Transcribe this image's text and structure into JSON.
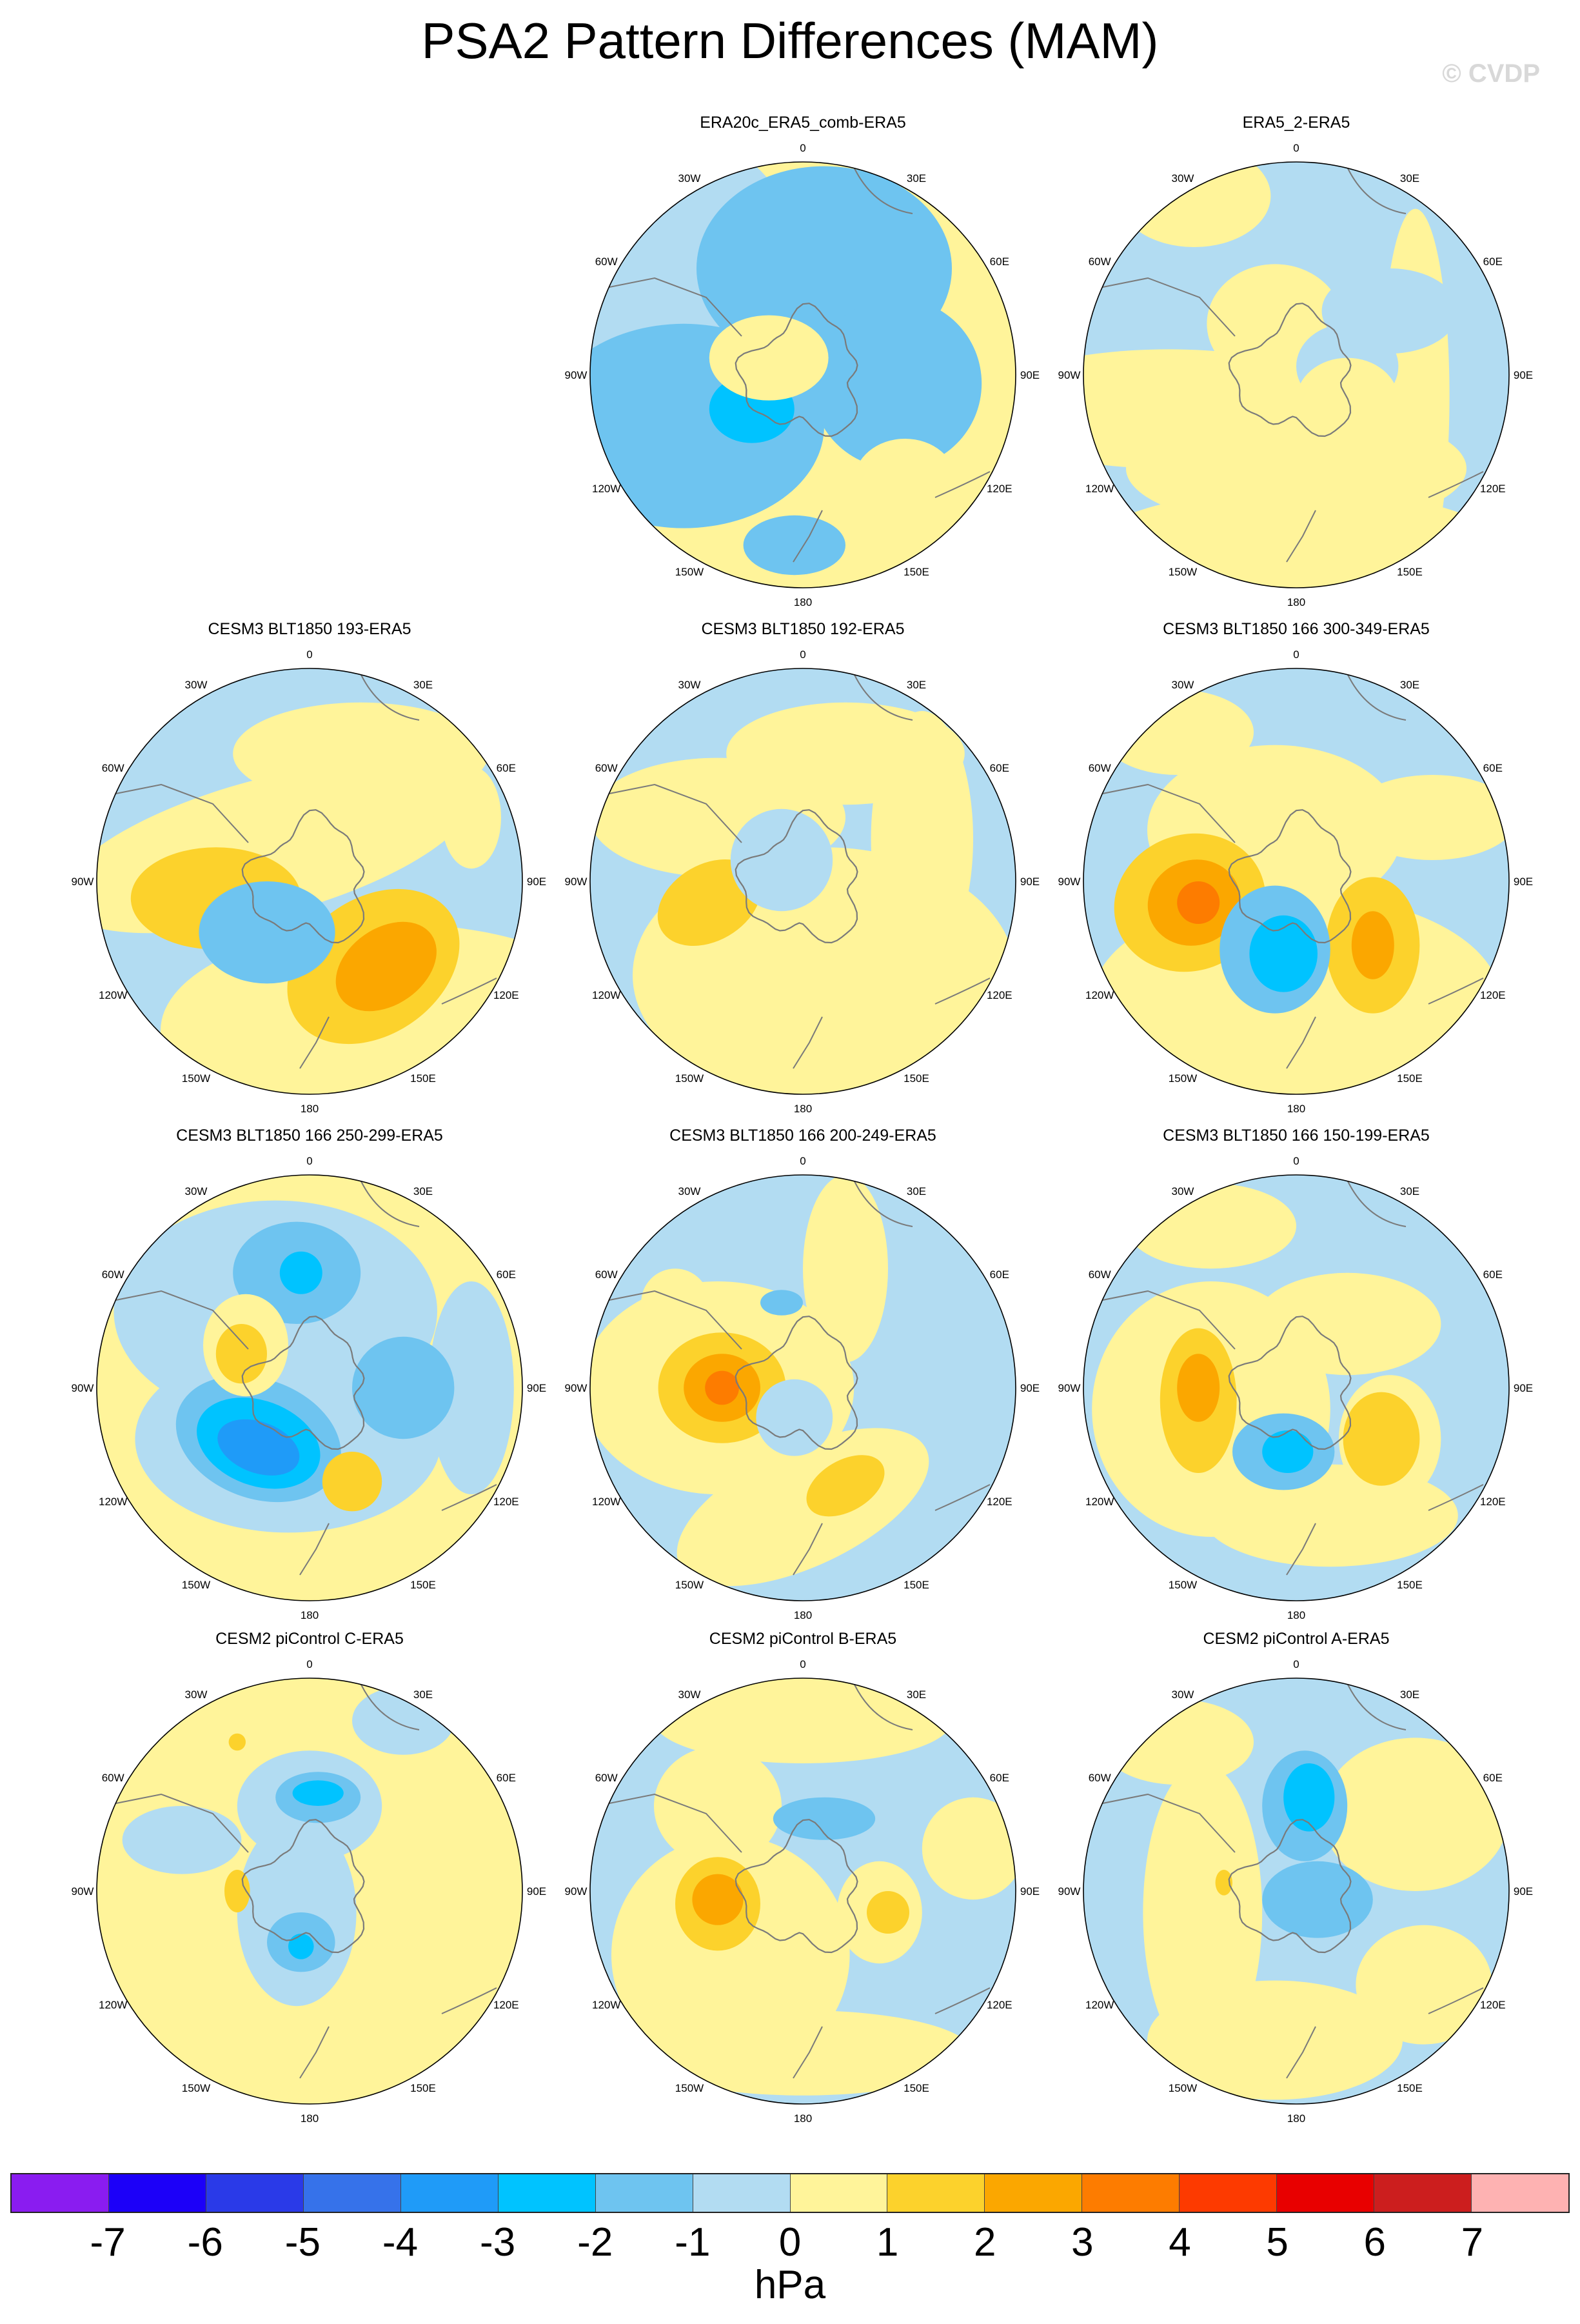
{
  "figure": {
    "title": "PSA2 Pattern Differences (MAM)",
    "watermark": "© CVDP"
  },
  "longitude_labels": {
    "lon_0": "0",
    "lon_30e": "30E",
    "lon_60e": "60E",
    "lon_90e": "90E",
    "lon_120e": "120E",
    "lon_150e": "150E",
    "lon_180": "180",
    "lon_150w": "150W",
    "lon_120w": "120W",
    "lon_90w": "90W",
    "lon_60w": "60W",
    "lon_30w": "30W"
  },
  "colors": {
    "land_outline": "#7a7a7a",
    "colorbar": [
      "#8a1cf0",
      "#1c00f8",
      "#2a3ae8",
      "#3672ea",
      "#1f9bf8",
      "#00c3ff",
      "#6ec4f0",
      "#b2dcf2",
      "#fff49a",
      "#fcd22c",
      "#fba700",
      "#fd7c00",
      "#fd3a00",
      "#e80000",
      "#cc1e1e",
      "#feb2b2"
    ]
  },
  "panels": [
    {
      "title": "ERA20c_ERA5_comb-ERA5",
      "base": "pos",
      "blobs": [
        [
          "neg1",
          0.08,
          0.2,
          0.6,
          0.4,
          0.3,
          0
        ],
        [
          "neg2",
          0.55,
          0.25,
          0.48,
          0.3,
          0.24,
          0
        ],
        [
          "neg2",
          0.22,
          0.62,
          0.6,
          0.33,
          0.24,
          0
        ],
        [
          "neg2",
          0.72,
          0.52,
          0.4,
          0.2,
          0.2,
          0
        ],
        [
          "neg3",
          0.38,
          0.58,
          0.6,
          0.1,
          0.08,
          0
        ],
        [
          "pos1",
          0.42,
          0.46,
          0.32,
          0.14,
          0.1,
          0
        ],
        [
          "pos1",
          0.74,
          0.75,
          0.4,
          0.12,
          0.1,
          0
        ],
        [
          "neg2",
          0.48,
          0.9,
          0.6,
          0.12,
          0.07,
          0
        ]
      ]
    },
    {
      "title": "ERA5_2-ERA5",
      "base": "neg",
      "blobs": [
        [
          "pos1",
          0.26,
          0.08,
          0.12,
          0.18,
          0.12,
          0
        ],
        [
          "pos1",
          0.5,
          0.72,
          0.7,
          0.4,
          0.14,
          0
        ],
        [
          "pos1",
          0.78,
          0.55,
          0.7,
          0.08,
          0.44,
          0
        ],
        [
          "pos1",
          0.2,
          0.58,
          0.4,
          0.45,
          0.14,
          0
        ],
        [
          "pos1",
          0.5,
          0.92,
          0.68,
          0.5,
          0.15,
          0
        ],
        [
          "pos1",
          0.45,
          0.38,
          0.25,
          0.16,
          0.14,
          0
        ],
        [
          "neg1",
          0.72,
          0.35,
          0.7,
          0.16,
          0.1,
          0
        ],
        [
          "neg1",
          0.62,
          0.48,
          0.7,
          0.12,
          0.1,
          0
        ],
        [
          "pos1",
          0.62,
          0.56,
          0.32,
          0.12,
          0.1,
          0
        ]
      ]
    },
    {
      "title": "CESM3 BLT1850 193-ERA5",
      "base": "neg",
      "blobs": [
        [
          "pos1",
          0.7,
          0.85,
          0.4,
          0.55,
          0.25,
          0
        ],
        [
          "pos1",
          0.4,
          0.42,
          0.3,
          0.5,
          0.16,
          -15
        ],
        [
          "pos1",
          0.62,
          0.2,
          0.55,
          0.3,
          0.12,
          0
        ],
        [
          "pos2",
          0.28,
          0.54,
          0.35,
          0.2,
          0.12,
          0
        ],
        [
          "pos2",
          0.65,
          0.7,
          0.63,
          0.22,
          0.16,
          -35
        ],
        [
          "pos3",
          0.68,
          0.7,
          0.67,
          0.13,
          0.09,
          -35
        ],
        [
          "neg2",
          0.4,
          0.62,
          0.6,
          0.16,
          0.12,
          0
        ],
        [
          "pos1",
          0.88,
          0.35,
          0.25,
          0.07,
          0.12,
          0
        ],
        [
          "pos1",
          0.7,
          0.38,
          0.2,
          0.1,
          0.08,
          0
        ]
      ]
    },
    {
      "title": "CESM3 BLT1850 192-ERA5",
      "base": "neg",
      "blobs": [
        [
          "pos1",
          0.55,
          0.72,
          0.6,
          0.45,
          0.3,
          0
        ],
        [
          "pos1",
          0.3,
          0.35,
          0.5,
          0.3,
          0.14,
          0
        ],
        [
          "pos1",
          0.78,
          0.4,
          0.5,
          0.12,
          0.3,
          0
        ],
        [
          "pos1",
          0.6,
          0.2,
          0.35,
          0.28,
          0.12,
          0
        ],
        [
          "pos2",
          0.28,
          0.55,
          0.35,
          0.13,
          0.09,
          -30
        ],
        [
          "neg1",
          0.45,
          0.45,
          0.25,
          0.12,
          0.12,
          0
        ],
        [
          "pos1",
          0.88,
          0.75,
          0.38,
          0.1,
          0.14,
          0
        ]
      ]
    },
    {
      "title": "CESM3 BLT1850 166 300-349-ERA5",
      "base": "neg",
      "blobs": [
        [
          "pos1",
          0.5,
          0.78,
          0.62,
          0.48,
          0.25,
          0
        ],
        [
          "pos1",
          0.45,
          0.38,
          0.34,
          0.3,
          0.2,
          0
        ],
        [
          "pos1",
          0.82,
          0.35,
          0.22,
          0.2,
          0.1,
          0
        ],
        [
          "pos1",
          0.22,
          0.15,
          0.16,
          0.18,
          0.1,
          0
        ],
        [
          "pos2",
          0.25,
          0.55,
          0.4,
          0.18,
          0.16,
          -20
        ],
        [
          "pos3",
          0.26,
          0.55,
          0.45,
          0.11,
          0.1,
          -20
        ],
        [
          "pos4",
          0.27,
          0.55,
          0.5,
          0.05,
          0.05,
          0
        ],
        [
          "pos2",
          0.68,
          0.65,
          0.55,
          0.11,
          0.16,
          0
        ],
        [
          "pos3",
          0.68,
          0.65,
          0.6,
          0.05,
          0.08,
          0
        ],
        [
          "neg2",
          0.45,
          0.66,
          0.6,
          0.13,
          0.15,
          0
        ],
        [
          "neg3",
          0.47,
          0.67,
          0.63,
          0.08,
          0.09,
          0
        ]
      ]
    },
    {
      "title": "CESM3 BLT1850 166 250-299-ERA5",
      "base": "pos",
      "blobs": [
        [
          "neg1",
          0.42,
          0.32,
          0.55,
          0.38,
          0.26,
          0
        ],
        [
          "neg1",
          0.45,
          0.62,
          0.6,
          0.36,
          0.22,
          0
        ],
        [
          "neg1",
          0.88,
          0.5,
          0.35,
          0.1,
          0.25,
          0
        ],
        [
          "neg2",
          0.47,
          0.23,
          0.6,
          0.15,
          0.12,
          0
        ],
        [
          "neg3",
          0.48,
          0.23,
          0.65,
          0.05,
          0.05,
          0
        ],
        [
          "neg2",
          0.72,
          0.5,
          0.6,
          0.12,
          0.12,
          0
        ],
        [
          "neg2",
          0.38,
          0.62,
          0.6,
          0.2,
          0.14,
          20
        ],
        [
          "neg3",
          0.38,
          0.63,
          0.62,
          0.15,
          0.1,
          20
        ],
        [
          "neg4",
          0.38,
          0.64,
          0.66,
          0.1,
          0.06,
          20
        ],
        [
          "pos1",
          0.35,
          0.4,
          0.45,
          0.1,
          0.12,
          0
        ],
        [
          "pos2",
          0.34,
          0.42,
          0.48,
          0.06,
          0.07,
          0
        ],
        [
          "pos2",
          0.6,
          0.72,
          0.5,
          0.07,
          0.07,
          0
        ]
      ]
    },
    {
      "title": "CESM3 BLT1850 166 200-249-ERA5",
      "base": "neg",
      "blobs": [
        [
          "pos1",
          0.3,
          0.5,
          0.38,
          0.32,
          0.25,
          0
        ],
        [
          "pos1",
          0.6,
          0.22,
          0.4,
          0.1,
          0.22,
          0
        ],
        [
          "pos1",
          0.5,
          0.78,
          0.55,
          0.32,
          0.14,
          -25
        ],
        [
          "pos1",
          0.2,
          0.3,
          0.3,
          0.08,
          0.08,
          0
        ],
        [
          "pos2",
          0.31,
          0.5,
          0.45,
          0.15,
          0.13,
          0
        ],
        [
          "pos3",
          0.31,
          0.5,
          0.5,
          0.09,
          0.08,
          0
        ],
        [
          "pos4",
          0.31,
          0.5,
          0.55,
          0.04,
          0.04,
          0
        ],
        [
          "pos2",
          0.6,
          0.73,
          0.5,
          0.1,
          0.06,
          -30
        ],
        [
          "neg1",
          0.48,
          0.57,
          0.25,
          0.09,
          0.09,
          0
        ],
        [
          "neg2",
          0.45,
          0.3,
          0.28,
          0.05,
          0.03,
          0
        ]
      ]
    },
    {
      "title": "CESM3 BLT1850 166 150-199-ERA5",
      "base": "neg",
      "blobs": [
        [
          "pos1",
          0.3,
          0.55,
          0.48,
          0.28,
          0.3,
          0
        ],
        [
          "pos1",
          0.58,
          0.8,
          0.55,
          0.3,
          0.12,
          0
        ],
        [
          "pos1",
          0.62,
          0.35,
          0.28,
          0.22,
          0.12,
          0
        ],
        [
          "pos1",
          0.3,
          0.12,
          0.2,
          0.2,
          0.1,
          0
        ],
        [
          "pos1",
          0.72,
          0.62,
          0.55,
          0.12,
          0.15,
          0
        ],
        [
          "pos2",
          0.27,
          0.53,
          0.45,
          0.09,
          0.17,
          0
        ],
        [
          "pos3",
          0.27,
          0.5,
          0.5,
          0.05,
          0.08,
          0
        ],
        [
          "pos2",
          0.7,
          0.62,
          0.55,
          0.09,
          0.11,
          0
        ],
        [
          "neg2",
          0.47,
          0.65,
          0.6,
          0.12,
          0.09,
          0
        ],
        [
          "neg3",
          0.48,
          0.65,
          0.62,
          0.06,
          0.05,
          0
        ]
      ]
    },
    {
      "title": "CESM2 piControl C-ERA5",
      "base": "pos",
      "blobs": [
        [
          "neg1",
          0.5,
          0.3,
          0.6,
          0.17,
          0.13,
          0
        ],
        [
          "neg1",
          0.47,
          0.55,
          0.6,
          0.14,
          0.22,
          0
        ],
        [
          "neg1",
          0.2,
          0.38,
          0.45,
          0.14,
          0.08,
          0
        ],
        [
          "neg1",
          0.72,
          0.1,
          0.45,
          0.12,
          0.08,
          0
        ],
        [
          "neg2",
          0.52,
          0.28,
          0.6,
          0.1,
          0.06,
          0
        ],
        [
          "neg3",
          0.52,
          0.27,
          0.65,
          0.06,
          0.03,
          0
        ],
        [
          "neg2",
          0.48,
          0.62,
          0.6,
          0.08,
          0.07,
          0
        ],
        [
          "neg3",
          0.48,
          0.63,
          0.65,
          0.03,
          0.03,
          0
        ],
        [
          "pos2",
          0.33,
          0.5,
          0.55,
          0.03,
          0.05,
          0
        ],
        [
          "pos2",
          0.33,
          0.15,
          0.55,
          0.02,
          0.02,
          0
        ]
      ]
    },
    {
      "title": "CESM2 piControl B-ERA5",
      "base": "neg",
      "blobs": [
        [
          "pos1",
          0.33,
          0.65,
          0.55,
          0.28,
          0.28,
          0
        ],
        [
          "pos1",
          0.5,
          0.1,
          0.5,
          0.35,
          0.1,
          0
        ],
        [
          "pos1",
          0.3,
          0.3,
          0.4,
          0.15,
          0.14,
          0
        ],
        [
          "pos1",
          0.68,
          0.55,
          0.5,
          0.1,
          0.12,
          0
        ],
        [
          "pos1",
          0.5,
          0.88,
          0.45,
          0.4,
          0.1,
          0
        ],
        [
          "pos1",
          0.9,
          0.4,
          0.38,
          0.12,
          0.12,
          0
        ],
        [
          "pos2",
          0.3,
          0.53,
          0.5,
          0.1,
          0.11,
          0
        ],
        [
          "pos3",
          0.3,
          0.52,
          0.55,
          0.06,
          0.06,
          0
        ],
        [
          "pos2",
          0.7,
          0.55,
          0.5,
          0.05,
          0.05,
          0
        ],
        [
          "neg2",
          0.55,
          0.33,
          0.6,
          0.12,
          0.05,
          0
        ]
      ]
    },
    {
      "title": "CESM2 piControl A-ERA5",
      "base": "neg",
      "blobs": [
        [
          "pos1",
          0.28,
          0.55,
          0.4,
          0.14,
          0.35,
          0
        ],
        [
          "pos1",
          0.45,
          0.85,
          0.3,
          0.3,
          0.14,
          0
        ],
        [
          "pos1",
          0.78,
          0.32,
          0.45,
          0.22,
          0.18,
          0
        ],
        [
          "pos1",
          0.8,
          0.72,
          0.4,
          0.16,
          0.14,
          0
        ],
        [
          "pos1",
          0.22,
          0.15,
          0.3,
          0.18,
          0.1,
          0
        ],
        [
          "neg2",
          0.52,
          0.3,
          0.6,
          0.1,
          0.13,
          0
        ],
        [
          "neg3",
          0.53,
          0.28,
          0.65,
          0.06,
          0.08,
          0
        ],
        [
          "neg2",
          0.55,
          0.52,
          0.45,
          0.13,
          0.09,
          0
        ],
        [
          "pos2",
          0.33,
          0.48,
          0.5,
          0.02,
          0.03,
          0
        ]
      ]
    }
  ],
  "colorbar": {
    "tick_labels": [
      "-7",
      "-6",
      "-5",
      "-4",
      "-3",
      "-2",
      "-1",
      "0",
      "1",
      "2",
      "3",
      "4",
      "5",
      "6",
      "7"
    ],
    "units": "hPa"
  }
}
